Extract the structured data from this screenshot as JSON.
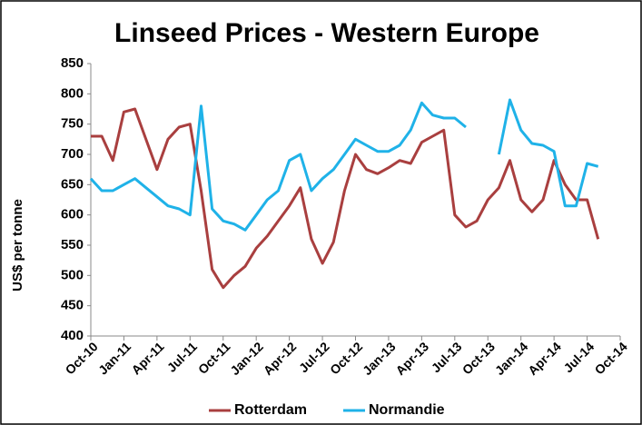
{
  "chart_data": {
    "type": "line",
    "title": "Linseed Prices - Western Europe",
    "y_label": "US$ per tonne",
    "categories": [
      "Oct-10",
      null,
      null,
      "Jan-11",
      null,
      null,
      "Apr-11",
      null,
      null,
      "Jul-11",
      null,
      null,
      "Oct-11",
      null,
      null,
      "Jan-12",
      null,
      null,
      "Apr-12",
      null,
      null,
      "Jul-12",
      null,
      null,
      "Oct-12",
      null,
      null,
      "Jan-13",
      null,
      null,
      "Apr-13",
      null,
      null,
      "Jul-13",
      null,
      null,
      "Oct-13",
      null,
      null,
      "Jan-14",
      null,
      null,
      "Apr-14",
      null,
      null,
      "Jul-14",
      null,
      null,
      "Oct-14"
    ],
    "series": [
      {
        "name": "Rotterdam",
        "color": "#a93f3f",
        "values": [
          730,
          730,
          690,
          770,
          775,
          725,
          675,
          725,
          745,
          750,
          640,
          510,
          480,
          500,
          515,
          545,
          565,
          590,
          615,
          645,
          560,
          520,
          555,
          640,
          700,
          675,
          668,
          678,
          690,
          685,
          720,
          730,
          740,
          600,
          580,
          590,
          625,
          645,
          690,
          625,
          605,
          625,
          690,
          650,
          625,
          625,
          560,
          null,
          null
        ]
      },
      {
        "name": "Normandie",
        "color": "#1fb2e8",
        "values": [
          660,
          640,
          640,
          650,
          660,
          645,
          630,
          615,
          610,
          600,
          780,
          610,
          590,
          585,
          575,
          600,
          625,
          640,
          690,
          700,
          640,
          660,
          675,
          700,
          725,
          715,
          705,
          705,
          715,
          740,
          785,
          765,
          760,
          760,
          745,
          null,
          null,
          700,
          790,
          740,
          718,
          715,
          705,
          615,
          615,
          685,
          680,
          null,
          null
        ]
      }
    ],
    "ylim": [
      400,
      850
    ],
    "yticks": [
      400,
      450,
      500,
      550,
      600,
      650,
      700,
      750,
      800,
      850
    ],
    "legend": "bottom"
  }
}
